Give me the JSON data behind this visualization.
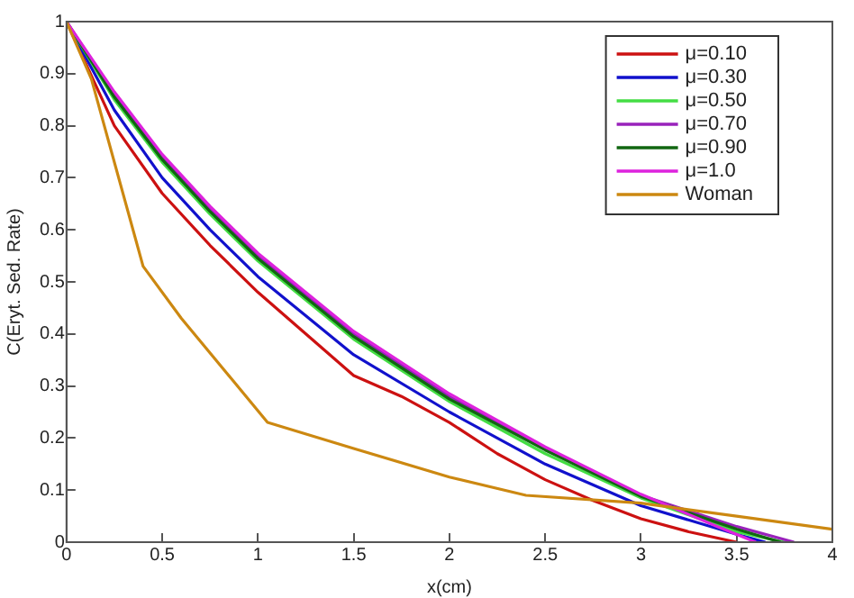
{
  "chart_data": {
    "type": "line",
    "xlabel": "x(cm)",
    "ylabel": "C(Eryt. Sed. Rate)",
    "xlim": [
      0,
      4
    ],
    "ylim": [
      0,
      1
    ],
    "xticks": [
      0,
      0.5,
      1,
      1.5,
      2,
      2.5,
      3,
      3.5,
      4
    ],
    "yticks": [
      0,
      0.1,
      0.2,
      0.3,
      0.4,
      0.5,
      0.6,
      0.7,
      0.8,
      0.9,
      1
    ],
    "grid": false,
    "legend": "top right",
    "marker": "none",
    "line_style": "solid",
    "series": [
      {
        "name": "μ=0.10",
        "color": "#cc1111",
        "x": [
          0,
          0.25,
          0.5,
          0.75,
          1,
          1.25,
          1.5,
          1.75,
          2,
          2.25,
          2.5,
          2.75,
          3,
          3.25,
          3.5
        ],
        "values": [
          1,
          0.8,
          0.67,
          0.57,
          0.48,
          0.4,
          0.32,
          0.28,
          0.23,
          0.17,
          0.12,
          0.08,
          0.045,
          0.02,
          0
        ]
      },
      {
        "name": "μ=0.30",
        "color": "#1111cc",
        "x": [
          0,
          0.25,
          0.5,
          0.75,
          1,
          1.5,
          2,
          2.5,
          3,
          3.5,
          3.65
        ],
        "values": [
          1,
          0.83,
          0.7,
          0.6,
          0.51,
          0.36,
          0.25,
          0.15,
          0.07,
          0.015,
          0
        ]
      },
      {
        "name": "μ=0.50",
        "color": "#44dd44",
        "x": [
          0,
          0.25,
          0.5,
          0.75,
          1,
          1.5,
          2,
          2.5,
          3,
          3.5,
          3.75
        ],
        "values": [
          1,
          0.85,
          0.73,
          0.63,
          0.54,
          0.39,
          0.27,
          0.17,
          0.085,
          0.02,
          0
        ]
      },
      {
        "name": "μ=0.70",
        "color": "#9922bb",
        "x": [
          0,
          0.25,
          0.5,
          0.75,
          1,
          1.5,
          2,
          2.5,
          3,
          3.5,
          3.8
        ],
        "values": [
          1,
          0.86,
          0.74,
          0.64,
          0.55,
          0.4,
          0.28,
          0.18,
          0.09,
          0.03,
          0
        ]
      },
      {
        "name": "μ=0.90",
        "color": "#116611",
        "x": [
          0,
          0.25,
          0.5,
          0.75,
          1,
          1.5,
          2,
          2.5,
          3,
          3.5,
          3.73
        ],
        "values": [
          1,
          0.855,
          0.735,
          0.635,
          0.545,
          0.395,
          0.275,
          0.177,
          0.088,
          0.025,
          0
        ]
      },
      {
        "name": "μ=1.0",
        "color": "#dd22dd",
        "x": [
          0,
          0.25,
          0.5,
          0.75,
          1,
          1.5,
          2,
          2.5,
          3,
          3.4,
          3.6
        ],
        "values": [
          1,
          0.865,
          0.745,
          0.645,
          0.555,
          0.405,
          0.285,
          0.183,
          0.092,
          0.03,
          0
        ]
      },
      {
        "name": "Woman",
        "color": "#cc8811",
        "x": [
          0,
          0.13,
          0.4,
          0.6,
          1.05,
          1.5,
          2,
          2.4,
          3,
          3.5,
          4
        ],
        "values": [
          1,
          0.89,
          0.53,
          0.43,
          0.23,
          0.18,
          0.125,
          0.09,
          0.075,
          0.05,
          0.025
        ]
      }
    ]
  }
}
